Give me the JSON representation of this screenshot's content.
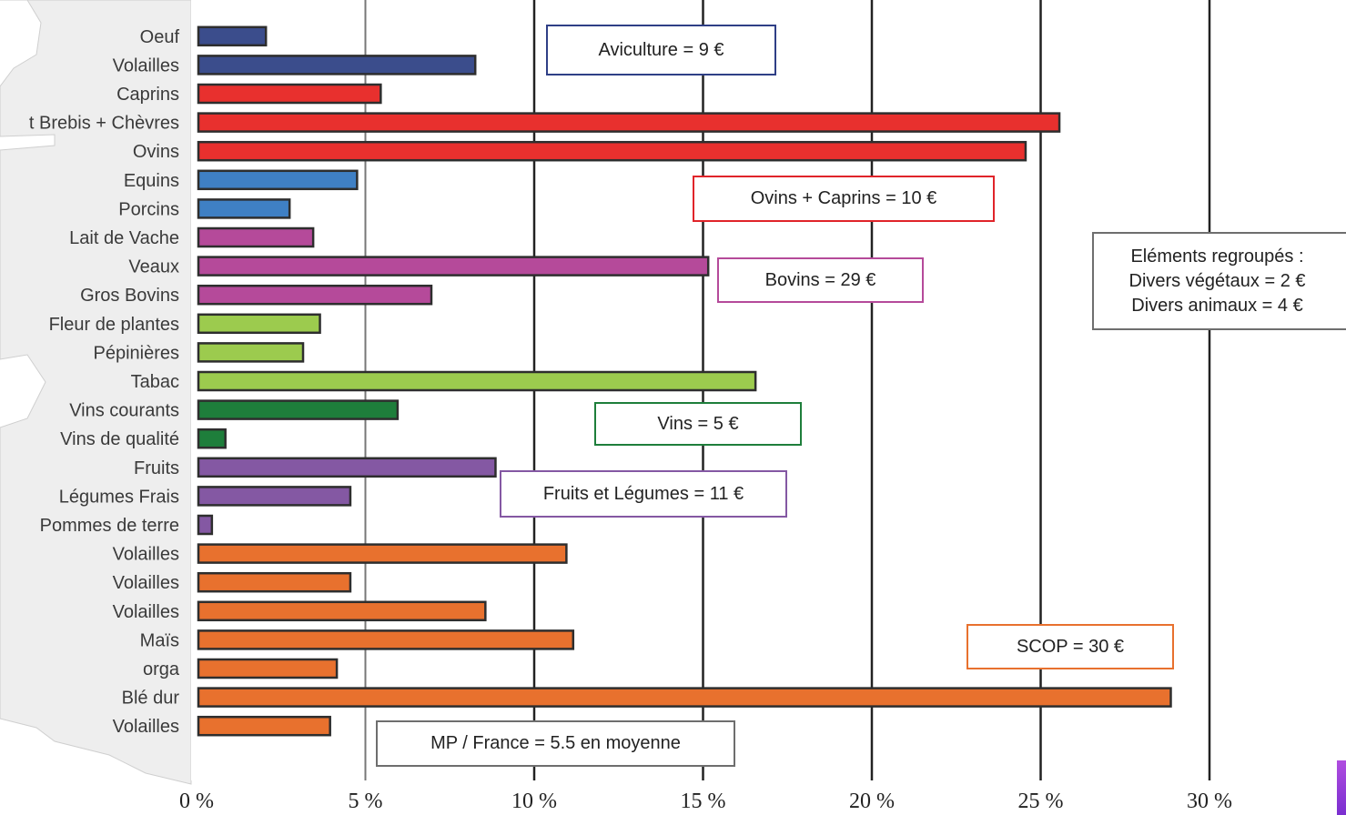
{
  "chart_data": {
    "type": "bar",
    "orientation": "horizontal",
    "categories": [
      "Oeuf",
      "Volailles",
      "Caprins",
      "t Brebis + Chèvres",
      "Ovins",
      "Equins",
      "Porcins",
      "Lait de Vache",
      "Veaux",
      "Gros Bovins",
      "Fleur de plantes",
      "Pépinières",
      "Tabac",
      "Vins courants",
      "Vins de qualité",
      "Fruits",
      "Légumes Frais",
      "Pommes de terre",
      "Volailles",
      "Volailles",
      "Volailles",
      "Maïs",
      "orga",
      "Blé dur",
      "Volailles"
    ],
    "values": [
      2.0,
      8.2,
      5.4,
      25.5,
      24.5,
      4.7,
      2.7,
      3.4,
      15.1,
      6.9,
      3.6,
      3.1,
      16.5,
      5.9,
      0.8,
      8.8,
      4.5,
      0.4,
      10.9,
      4.5,
      8.5,
      11.1,
      4.1,
      28.8,
      3.9
    ],
    "colors": [
      "#3b4d8c",
      "#3b4d8c",
      "#e8302e",
      "#e8302e",
      "#e8302e",
      "#3f80c4",
      "#3f80c4",
      "#b54a9a",
      "#b54a9a",
      "#b54a9a",
      "#9ccb4e",
      "#9ccb4e",
      "#9ccb4e",
      "#1e7e3b",
      "#1e7e3b",
      "#8458a3",
      "#8458a3",
      "#8458a3",
      "#e8712e",
      "#e8712e",
      "#e8712e",
      "#e8712e",
      "#e8712e",
      "#e8712e",
      "#e8712e"
    ],
    "xlim": [
      0,
      30
    ],
    "ticks": [
      0,
      5,
      10,
      15,
      20,
      25,
      30
    ],
    "tick_labels": [
      "0 %",
      "5 %",
      "10 %",
      "15 %",
      "20 %",
      "25 %",
      "30 %"
    ],
    "grid": "vertical",
    "annotations": [
      {
        "lines": [
          "Aviculture = 9 €"
        ],
        "color": "#2f3f86"
      },
      {
        "lines": [
          "Ovins + Caprins = 10 €"
        ],
        "color": "#e0242a"
      },
      {
        "lines": [
          "Bovins = 29 €"
        ],
        "color": "#b54a9a"
      },
      {
        "lines": [
          "Vins = 5 €"
        ],
        "color": "#1e7e3b"
      },
      {
        "lines": [
          "Fruits et Légumes = 11 €"
        ],
        "color": "#8458a3"
      },
      {
        "lines": [
          "SCOP  = 30 €"
        ],
        "color": "#e8712e"
      },
      {
        "lines": [
          "MP / France = 5.5 en moyenne"
        ],
        "color": "#6e6e6e"
      },
      {
        "lines": [
          "Eléments regroupés :",
          "Divers végétaux = 2 €",
          "Divers animaux = 4 €"
        ],
        "color": "#6e6e6e"
      }
    ]
  }
}
